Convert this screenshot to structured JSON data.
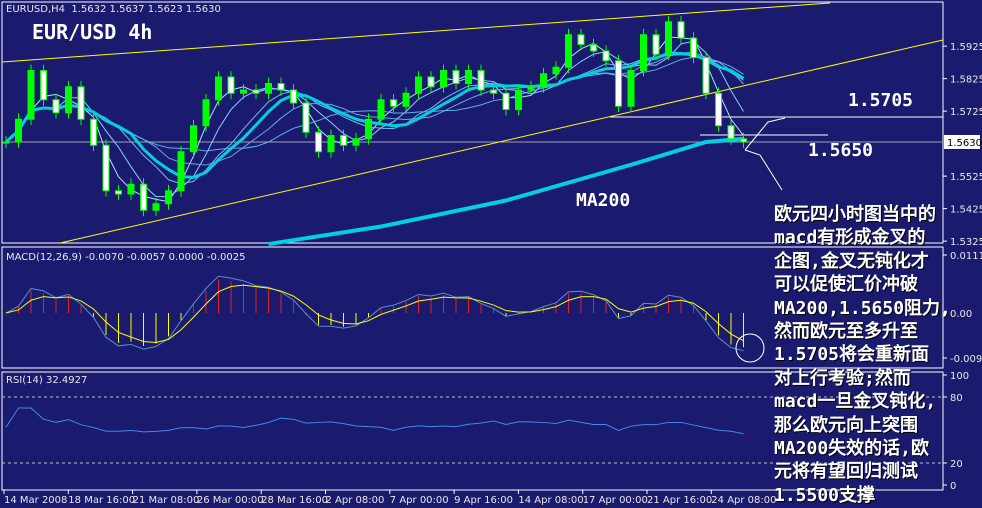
{
  "header": {
    "symbol_line": "EURUSD,H4  1.5632 1.5637 1.5623 1.5630",
    "title": "EUR/USD 4h"
  },
  "macd_label": "MACD(12,26,9) -0.0070 -0.0057 0.0000 -0.0025",
  "rsi_label": "RSI(14) 32.4927",
  "annotations": {
    "level_high": "1.5705",
    "level_low": "1.5650",
    "ma200": "MA200"
  },
  "note_lines": [
    "欧元四小时图当中的",
    "macd有形成金叉的",
    "企图,金叉无钝化才",
    "可以促使汇价冲破",
    "MA200,1.5650阻力,",
    "然而欧元至多升至",
    "1.5705将会重新面",
    "对上行考验;然而",
    "macd一旦金叉钝化,",
    "那么欧元向上突围",
    "MA200失效的话,欧",
    "元将有望回归测试",
    "1.5500支撑"
  ],
  "chart_data": {
    "type": "candlestick",
    "price_axis_ticks": [
      "1.5925",
      "1.5825",
      "1.5725",
      "1.5525",
      "1.5425",
      "1.5325"
    ],
    "current_price": "1.5630",
    "macd_axis_ticks": [
      "0.0111",
      "0.00",
      "-0.0092"
    ],
    "rsi_axis_ticks": [
      "100",
      "80",
      "20",
      "0"
    ],
    "x_tick_labels": [
      "14 Mar 2008",
      "18 Mar 16:00",
      "21 Mar 08:00",
      "26 Mar 00:00",
      "28 Mar 16:00",
      "2 Apr 08:00",
      "7 Apr 00:00",
      "9 Apr 16:00",
      "14 Apr 08:00",
      "17 Apr 00:00",
      "21 Apr 16:00",
      "24 Apr 08:00"
    ],
    "closes": [
      1.563,
      1.57,
      1.585,
      1.576,
      1.572,
      1.58,
      1.57,
      1.562,
      1.548,
      1.547,
      1.55,
      1.542,
      1.544,
      1.548,
      1.56,
      1.568,
      1.576,
      1.583,
      1.578,
      1.579,
      1.578,
      1.581,
      1.579,
      1.575,
      1.566,
      1.56,
      1.565,
      1.562,
      1.564,
      1.57,
      1.576,
      1.574,
      1.578,
      1.583,
      1.58,
      1.585,
      1.581,
      1.585,
      1.579,
      1.578,
      1.573,
      1.579,
      1.58,
      1.584,
      1.586,
      1.596,
      1.593,
      1.591,
      1.588,
      1.574,
      1.585,
      1.596,
      1.59,
      1.6,
      1.595,
      1.589,
      1.578,
      1.568,
      1.564,
      1.563
    ],
    "ma200": [
      [
        21,
        1.5316
      ],
      [
        30,
        1.537
      ],
      [
        40,
        1.545
      ],
      [
        50,
        1.556
      ],
      [
        56,
        1.563
      ],
      [
        59,
        1.564
      ]
    ],
    "horizontal_levels": [
      1.5705,
      1.565
    ],
    "colors": {
      "background": "#1a1a6e",
      "candle": "#00ff00",
      "ma": "#87cefa",
      "ma200": "#00d0e0",
      "trendline": "#ffff00",
      "macd_pos": "#e0202a",
      "macd_neg": "#ffff00"
    }
  }
}
